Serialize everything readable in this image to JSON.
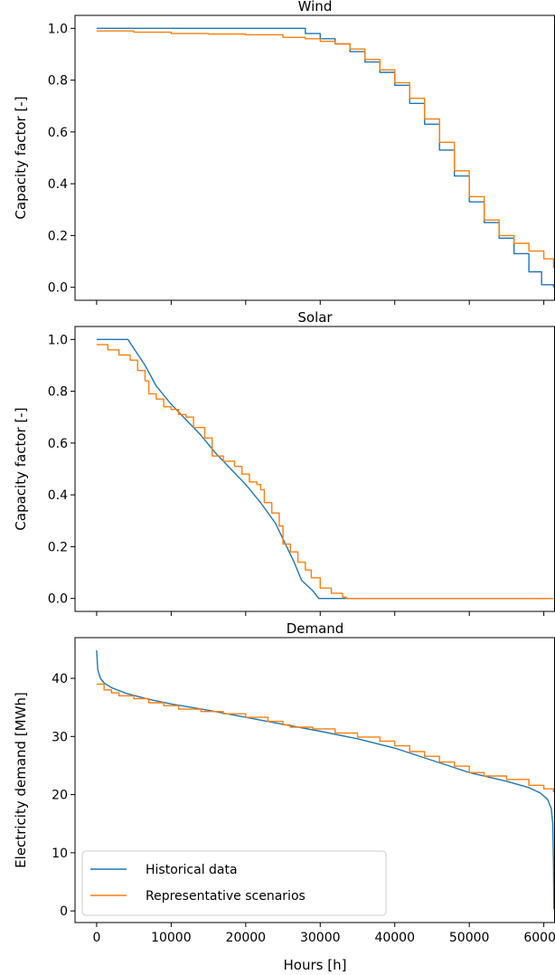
{
  "colors": {
    "historical": "#1f77b4",
    "representative": "#ff7f0e"
  },
  "chart_data": [
    {
      "type": "line",
      "title": "Wind",
      "xlabel": "",
      "ylabel": "Capacity factor [-]",
      "xlim": [
        -2900,
        61500
      ],
      "ylim": [
        -0.05,
        1.05
      ],
      "xticks": [
        0,
        10000,
        20000,
        30000,
        40000,
        50000,
        60000
      ],
      "xtick_labels_shown": false,
      "yticks": [
        0.0,
        0.2,
        0.4,
        0.6,
        0.8,
        1.0
      ],
      "ytick_labels": [
        "0.0",
        "0.2",
        "0.4",
        "0.6",
        "0.8",
        "1.0"
      ],
      "series": [
        {
          "key": "historical",
          "step": true,
          "points": [
            [
              0,
              1.0
            ],
            [
              26200,
              1.0
            ],
            [
              28000,
              0.98
            ],
            [
              30000,
              0.96
            ],
            [
              32000,
              0.94
            ],
            [
              34000,
              0.91
            ],
            [
              36000,
              0.87
            ],
            [
              38000,
              0.83
            ],
            [
              40000,
              0.78
            ],
            [
              42000,
              0.71
            ],
            [
              44000,
              0.63
            ],
            [
              46000,
              0.53
            ],
            [
              48000,
              0.43
            ],
            [
              50000,
              0.33
            ],
            [
              52000,
              0.25
            ],
            [
              54000,
              0.19
            ],
            [
              56000,
              0.13
            ],
            [
              58000,
              0.06
            ],
            [
              59700,
              0.01
            ],
            [
              61300,
              0.0
            ]
          ]
        },
        {
          "key": "representative",
          "step": true,
          "points": [
            [
              0,
              0.99
            ],
            [
              5000,
              0.985
            ],
            [
              10000,
              0.98
            ],
            [
              15000,
              0.978
            ],
            [
              20000,
              0.975
            ],
            [
              25000,
              0.965
            ],
            [
              28000,
              0.96
            ],
            [
              30000,
              0.95
            ],
            [
              32000,
              0.94
            ],
            [
              34000,
              0.92
            ],
            [
              36000,
              0.88
            ],
            [
              38000,
              0.84
            ],
            [
              40000,
              0.79
            ],
            [
              42000,
              0.73
            ],
            [
              44000,
              0.65
            ],
            [
              46000,
              0.56
            ],
            [
              48000,
              0.45
            ],
            [
              50000,
              0.35
            ],
            [
              52000,
              0.26
            ],
            [
              54000,
              0.2
            ],
            [
              56000,
              0.17
            ],
            [
              58000,
              0.14
            ],
            [
              60000,
              0.11
            ],
            [
              61300,
              0.075
            ]
          ]
        }
      ]
    },
    {
      "type": "line",
      "title": "Solar",
      "xlabel": "",
      "ylabel": "Capacity factor [-]",
      "xlim": [
        -2900,
        61500
      ],
      "ylim": [
        -0.05,
        1.05
      ],
      "xticks": [
        0,
        10000,
        20000,
        30000,
        40000,
        50000,
        60000
      ],
      "xtick_labels_shown": false,
      "yticks": [
        0.0,
        0.2,
        0.4,
        0.6,
        0.8,
        1.0
      ],
      "ytick_labels": [
        "0.0",
        "0.2",
        "0.4",
        "0.6",
        "0.8",
        "1.0"
      ],
      "series": [
        {
          "key": "historical",
          "step": false,
          "points": [
            [
              0,
              1.0
            ],
            [
              4200,
              1.0
            ],
            [
              6500,
              0.9
            ],
            [
              8000,
              0.82
            ],
            [
              10000,
              0.75
            ],
            [
              12000,
              0.69
            ],
            [
              14000,
              0.63
            ],
            [
              16000,
              0.56
            ],
            [
              18000,
              0.5
            ],
            [
              20000,
              0.44
            ],
            [
              22000,
              0.37
            ],
            [
              24000,
              0.29
            ],
            [
              25500,
              0.2
            ],
            [
              26500,
              0.14
            ],
            [
              27500,
              0.07
            ],
            [
              29000,
              0.03
            ],
            [
              29800,
              0.0
            ],
            [
              61300,
              0.0
            ]
          ]
        },
        {
          "key": "representative",
          "step": true,
          "points": [
            [
              0,
              0.98
            ],
            [
              1500,
              0.96
            ],
            [
              3000,
              0.94
            ],
            [
              4500,
              0.92
            ],
            [
              5500,
              0.88
            ],
            [
              6500,
              0.84
            ],
            [
              7000,
              0.79
            ],
            [
              8000,
              0.77
            ],
            [
              9000,
              0.74
            ],
            [
              10000,
              0.73
            ],
            [
              11000,
              0.71
            ],
            [
              12000,
              0.7
            ],
            [
              13000,
              0.66
            ],
            [
              14500,
              0.62
            ],
            [
              15500,
              0.55
            ],
            [
              17000,
              0.53
            ],
            [
              18500,
              0.51
            ],
            [
              19500,
              0.48
            ],
            [
              20500,
              0.45
            ],
            [
              21500,
              0.44
            ],
            [
              22000,
              0.42
            ],
            [
              22500,
              0.37
            ],
            [
              23500,
              0.33
            ],
            [
              24500,
              0.28
            ],
            [
              25000,
              0.21
            ],
            [
              26000,
              0.18
            ],
            [
              27000,
              0.14
            ],
            [
              28000,
              0.11
            ],
            [
              28800,
              0.08
            ],
            [
              30000,
              0.04
            ],
            [
              31500,
              0.02
            ],
            [
              33000,
              0.005
            ],
            [
              33500,
              0.0
            ],
            [
              61300,
              0.0
            ]
          ]
        }
      ]
    },
    {
      "type": "line",
      "title": "Demand",
      "xlabel": "Hours [h]",
      "ylabel": "Electricity demand [MWh]",
      "xlim": [
        -2900,
        61500
      ],
      "ylim": [
        -2,
        47
      ],
      "xticks": [
        0,
        10000,
        20000,
        30000,
        40000,
        50000,
        60000
      ],
      "xtick_labels": [
        "0",
        "10000",
        "20000",
        "30000",
        "40000",
        "50000",
        "60000"
      ],
      "xtick_labels_shown": true,
      "yticks": [
        0,
        10,
        20,
        30,
        40
      ],
      "ytick_labels": [
        "0",
        "10",
        "20",
        "30",
        "40"
      ],
      "legend": {
        "placement": "lower-left",
        "entries": [
          {
            "key": "historical",
            "label": "Historical data"
          },
          {
            "key": "representative",
            "label": "Representative scenarios"
          }
        ]
      },
      "series": [
        {
          "key": "historical",
          "name": "Historical data",
          "step": false,
          "points": [
            [
              0,
              44.8
            ],
            [
              150,
              41.5
            ],
            [
              500,
              40.0
            ],
            [
              1000,
              39.2
            ],
            [
              2000,
              38.4
            ],
            [
              4000,
              37.4
            ],
            [
              7000,
              36.4
            ],
            [
              10000,
              35.6
            ],
            [
              15000,
              34.5
            ],
            [
              20000,
              33.3
            ],
            [
              25000,
              32.1
            ],
            [
              30000,
              30.9
            ],
            [
              35000,
              29.6
            ],
            [
              40000,
              28.0
            ],
            [
              45000,
              25.9
            ],
            [
              50000,
              23.8
            ],
            [
              55000,
              22.3
            ],
            [
              58000,
              21.2
            ],
            [
              59500,
              20.3
            ],
            [
              60500,
              19.2
            ],
            [
              61000,
              17.6
            ],
            [
              61200,
              15.0
            ],
            [
              61300,
              8.0
            ],
            [
              61350,
              0.3
            ]
          ]
        },
        {
          "key": "representative",
          "name": "Representative scenarios",
          "step": true,
          "points": [
            [
              0,
              39.0
            ],
            [
              1000,
              38.0
            ],
            [
              2000,
              37.5
            ],
            [
              3000,
              37.0
            ],
            [
              5000,
              36.5
            ],
            [
              7000,
              35.8
            ],
            [
              9000,
              35.3
            ],
            [
              11000,
              34.7
            ],
            [
              14000,
              34.3
            ],
            [
              17000,
              33.9
            ],
            [
              20000,
              33.3
            ],
            [
              23000,
              32.6
            ],
            [
              25000,
              32.0
            ],
            [
              26000,
              31.6
            ],
            [
              29000,
              31.3
            ],
            [
              32000,
              30.6
            ],
            [
              35000,
              29.9
            ],
            [
              38000,
              29.2
            ],
            [
              40000,
              28.4
            ],
            [
              42000,
              27.4
            ],
            [
              44000,
              26.6
            ],
            [
              46000,
              25.6
            ],
            [
              48000,
              24.9
            ],
            [
              50000,
              23.8
            ],
            [
              52000,
              23.2
            ],
            [
              55000,
              22.6
            ],
            [
              58000,
              21.6
            ],
            [
              60000,
              21.0
            ],
            [
              61300,
              20.4
            ]
          ]
        }
      ]
    }
  ]
}
